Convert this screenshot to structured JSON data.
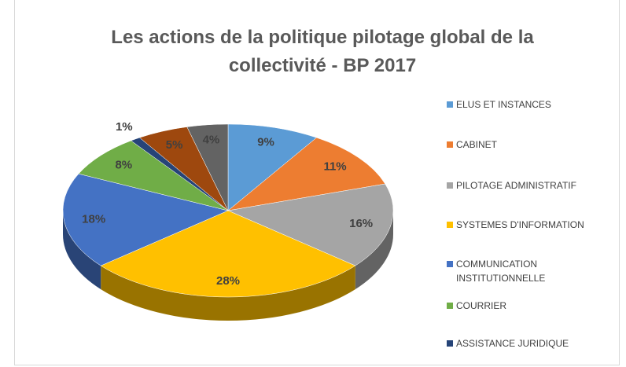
{
  "chart_data": {
    "type": "pie3d",
    "title": "Les actions de la politique pilotage global de la collectivité - BP 2017",
    "categories": [
      "ELUS ET INSTANCES",
      "CABINET",
      "PILOTAGE ADMINISTRATIF",
      "SYSTEMES D'INFORMATION",
      "COMMUNICATION INSTITUTIONNELLE",
      "COURRIER",
      "ASSISTANCE JURIDIQUE",
      null,
      null
    ],
    "values": [
      9,
      11,
      16,
      28,
      18,
      8,
      1,
      5,
      4
    ],
    "value_labels": [
      "9%",
      "11%",
      "16%",
      "28%",
      "18%",
      "8%",
      "1%",
      "5%",
      "4%"
    ],
    "colors": [
      "#5b9bd5",
      "#ed7d31",
      "#a5a5a5",
      "#ffc000",
      "#4472c4",
      "#70ad47",
      "#264478",
      "#9e480e",
      "#636363"
    ],
    "legend": "right"
  }
}
